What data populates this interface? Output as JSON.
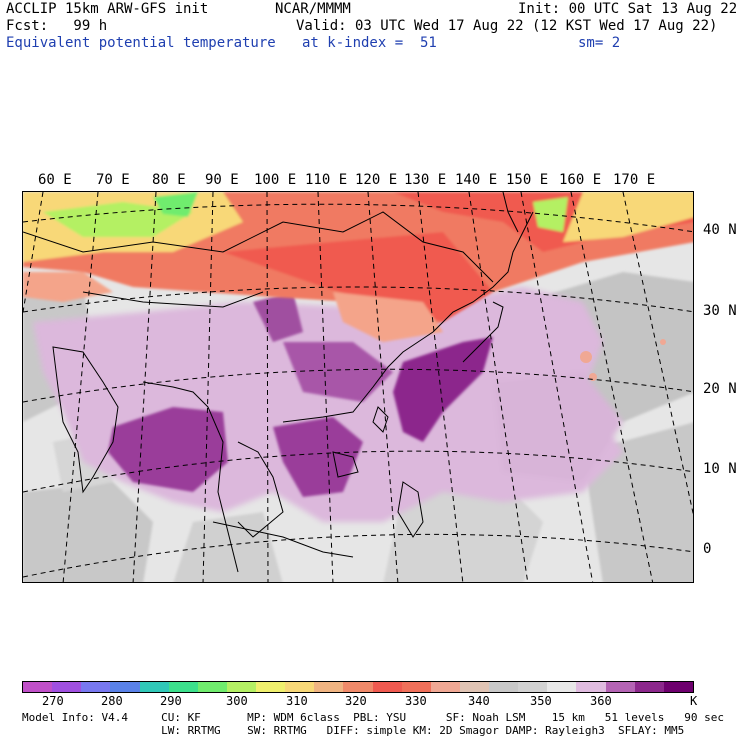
{
  "header": {
    "model": "ACCLIP 15km ARW-GFS init",
    "org": "NCAR/MMMM",
    "init": "Init: 00 UTC Sat 13 Aug 22",
    "fcst": "Fcst:   99 h",
    "valid": "Valid: 03 UTC Wed 17 Aug 22 (12 KST Wed 17 Aug 22)",
    "field": "Equivalent potential temperature",
    "level": "at k-index =  51",
    "smooth": "sm= 2"
  },
  "longitude_labels": [
    "60 E",
    "70 E",
    "80 E",
    "90 E",
    "100 E",
    "110 E",
    "120 E",
    "130 E",
    "140 E",
    "150 E",
    "160 E",
    "170 E"
  ],
  "latitude_labels": [
    "40 N",
    "30 N",
    "20 N",
    "10 N",
    "0"
  ],
  "colorbar": {
    "colors": [
      "#c050c8",
      "#a050e0",
      "#7878f0",
      "#5a82e8",
      "#30c8b8",
      "#3ce08c",
      "#70ec6e",
      "#b4f064",
      "#f0f06e",
      "#f8d878",
      "#f0b482",
      "#f08a6a",
      "#f05a50",
      "#f0705a",
      "#f0a894",
      "#e0c4b4",
      "#c8c8c8",
      "#d2d2d2",
      "#e8e8e8",
      "#e0bce0",
      "#b464b4",
      "#8c288c",
      "#6e006e"
    ],
    "labels": [
      "270",
      "280",
      "290",
      "300",
      "310",
      "320",
      "330",
      "340",
      "350",
      "360"
    ],
    "unit": "K"
  },
  "model_info": {
    "line1": "Model Info: V4.4     CU: KF       MP: WDM 6class  PBL: YSU      SF: Noah LSM    15 km   51 levels   90 sec",
    "line2": "                     LW: RRTMG    SW: RRTMG   DIFF: simple KM: 2D Smagor DAMP: Rayleigh3  SFLAY: MM5"
  }
}
